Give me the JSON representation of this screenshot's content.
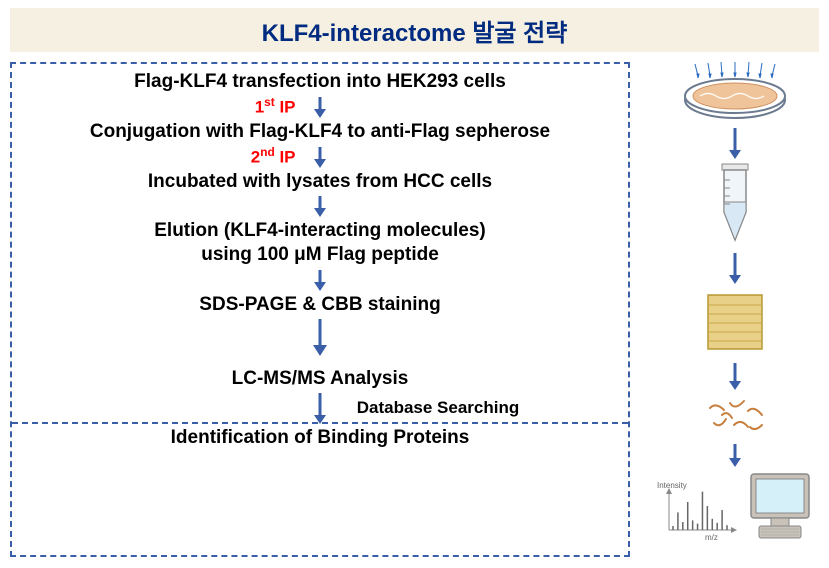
{
  "title": "KLF4-interactome 발굴 전략",
  "colors": {
    "title_bg": "#f5f0e1",
    "title_text": "#002b80",
    "border": "#3a5fa8",
    "arrow": "#3a5fa8",
    "ip_label": "#ff0000",
    "text": "#000000",
    "dish_fill": "#f0c49a",
    "dish_rim": "#6b7a8f",
    "tube_fill": "#d9e8f5",
    "gel_fill": "#e8d088",
    "monitor_fill": "#d6f0fa",
    "monitor_body": "#c9c2b8",
    "spectrum_axis": "#888888"
  },
  "steps": {
    "s1": "Flag-KLF4 transfection into HEK293 cells",
    "s2": "Conjugation with Flag-KLF4 to anti-Flag sepherose",
    "s3": "Incubated with lysates from HCC cells",
    "s4_l1": "Elution  (KLF4-interacting molecules)",
    "s4_l2": "using 100 μM  Flag peptide",
    "s5": "SDS-PAGE & CBB staining",
    "s6": "LC-MS/MS Analysis",
    "s7": "Identification of Binding Proteins"
  },
  "labels": {
    "ip1": "1",
    "ip1_suffix": " IP",
    "ip1_ord": "st",
    "ip2": "2",
    "ip2_suffix": " IP",
    "ip2_ord": "nd",
    "db": "Database Searching",
    "intensity": "Intensity",
    "mz": "m/z"
  },
  "spectrum": {
    "peaks": [
      5,
      22,
      10,
      35,
      12,
      8,
      48,
      30,
      14,
      9,
      25,
      6
    ]
  }
}
